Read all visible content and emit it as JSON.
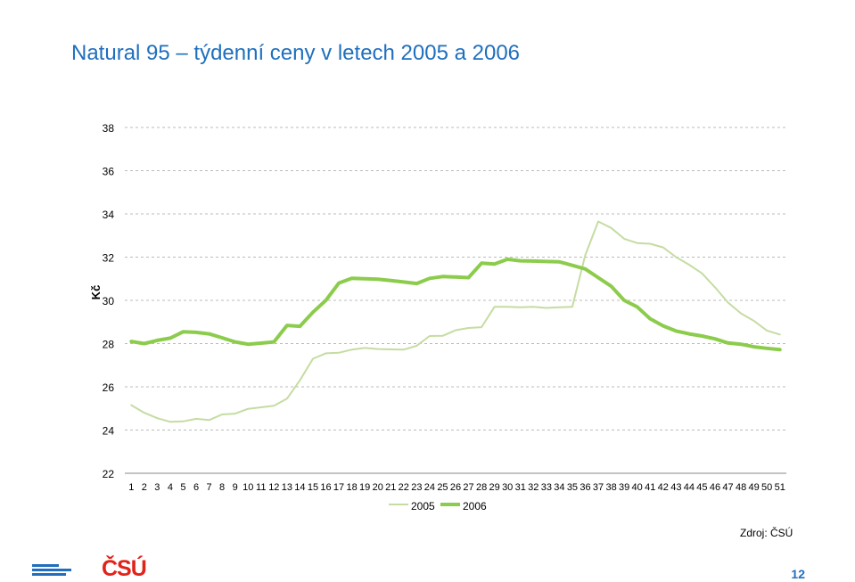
{
  "page": {
    "title": "Natural 95 – týdenní ceny v letech 2005 a 2006",
    "source": "Zdroj: ČSÚ",
    "logo_text": "ČSÚ",
    "page_number": "12"
  },
  "colors": {
    "title": "#1f6fbe",
    "series_2005": "#c5dca2",
    "series_2006": "#8ccc4c",
    "grid": "#bbbbbb",
    "axis": "#888888"
  },
  "chart_data": {
    "type": "line",
    "title": "Natural 95 – týdenní ceny v letech 2005 a 2006",
    "xlabel": "",
    "ylabel": "Kč",
    "ylim": [
      22,
      38
    ],
    "yticks": [
      22,
      24,
      26,
      28,
      30,
      32,
      34,
      36,
      38
    ],
    "grid": "horizontal-dashed",
    "legend": "bottom-center",
    "categories": [
      "1",
      "2",
      "3",
      "4",
      "5",
      "6",
      "7",
      "8",
      "9",
      "10",
      "11",
      "12",
      "13",
      "14",
      "15",
      "16",
      "17",
      "18",
      "19",
      "20",
      "21",
      "22",
      "23",
      "24",
      "25",
      "26",
      "27",
      "28",
      "29",
      "30",
      "31",
      "32",
      "33",
      "34",
      "35",
      "36",
      "37",
      "38",
      "39",
      "40",
      "41",
      "42",
      "43",
      "44",
      "45",
      "46",
      "47",
      "48",
      "49",
      "50",
      "51"
    ],
    "series": [
      {
        "name": "2005",
        "values": [
          25.15,
          24.8,
          24.55,
          24.38,
          24.4,
          24.52,
          24.46,
          24.72,
          24.76,
          24.98,
          25.05,
          25.12,
          25.45,
          26.3,
          27.3,
          27.55,
          27.58,
          27.72,
          27.8,
          27.75,
          27.73,
          27.72,
          27.9,
          28.35,
          28.36,
          28.62,
          28.72,
          28.76,
          29.7,
          29.7,
          29.68,
          29.7,
          29.65,
          29.68,
          29.7,
          32.1,
          33.65,
          33.35,
          32.85,
          32.65,
          32.62,
          32.45,
          32.0,
          31.65,
          31.25,
          30.6,
          29.9,
          29.4,
          29.05,
          28.6,
          28.42
        ]
      },
      {
        "name": "2006",
        "values": [
          28.1,
          28.0,
          28.15,
          28.25,
          28.55,
          28.52,
          28.45,
          28.27,
          28.08,
          27.97,
          28.02,
          28.08,
          28.84,
          28.8,
          29.45,
          30.0,
          30.8,
          31.02,
          31.0,
          30.98,
          30.92,
          30.85,
          30.78,
          31.02,
          31.1,
          31.08,
          31.05,
          31.72,
          31.68,
          31.9,
          31.83,
          31.82,
          31.8,
          31.78,
          31.62,
          31.45,
          31.05,
          30.65,
          30.0,
          29.7,
          29.15,
          28.82,
          28.58,
          28.45,
          28.35,
          28.22,
          28.03,
          27.97,
          27.85,
          27.78,
          27.72
        ]
      }
    ]
  }
}
